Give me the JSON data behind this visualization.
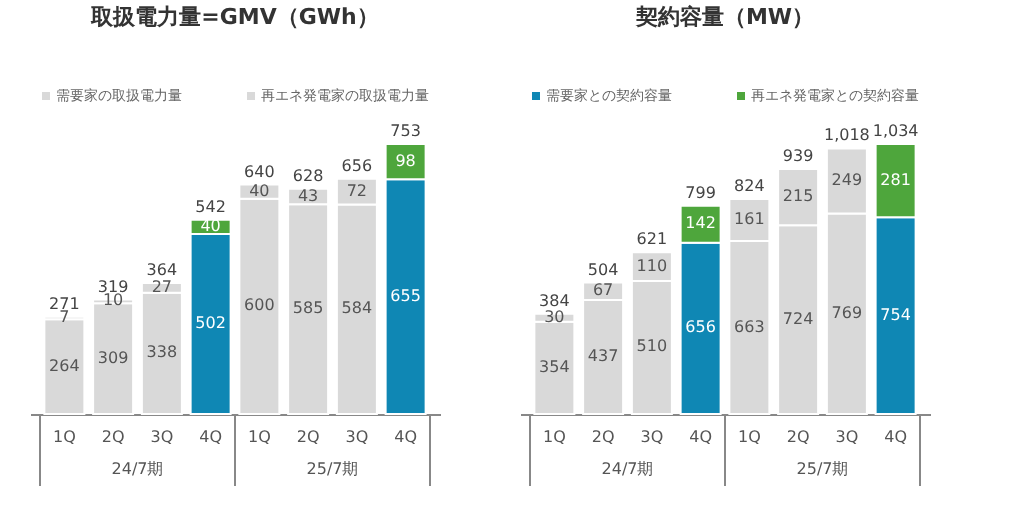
{
  "chart_data": [
    {
      "type": "bar",
      "title": "取扱電力量=GMV（GWh）",
      "stacked": true,
      "data_labels": true,
      "legend": "top",
      "categories": [
        "1Q",
        "2Q",
        "3Q",
        "4Q",
        "1Q",
        "2Q",
        "3Q",
        "4Q"
      ],
      "annotations": [
        "24/7期",
        "25/7期"
      ],
      "series": [
        {
          "name": "需要家の取扱電力量",
          "color": "#d9d9d9",
          "colors": [
            "#d9d9d9",
            "#d9d9d9",
            "#d9d9d9",
            "#0f87b4",
            "#d9d9d9",
            "#d9d9d9",
            "#d9d9d9",
            "#0f87b4"
          ],
          "values": [
            264,
            309,
            338,
            502,
            600,
            585,
            584,
            655
          ]
        },
        {
          "name": "再エネ発電家の取扱電力量",
          "color": "#d9d9d9",
          "colors": [
            "#d9d9d9",
            "#d9d9d9",
            "#d9d9d9",
            "#4ea63c",
            "#d9d9d9",
            "#d9d9d9",
            "#d9d9d9",
            "#4ea63c"
          ],
          "values": [
            7,
            10,
            27,
            40,
            40,
            43,
            72,
            98
          ]
        }
      ],
      "totals": [
        "271",
        "319",
        "364",
        "542",
        "640",
        "628",
        "656",
        "753"
      ]
    },
    {
      "type": "bar",
      "title": "契約容量（MW）",
      "stacked": true,
      "data_labels": true,
      "legend": "top",
      "categories": [
        "1Q",
        "2Q",
        "3Q",
        "4Q",
        "1Q",
        "2Q",
        "3Q",
        "4Q"
      ],
      "annotations": [
        "24/7期",
        "25/7期"
      ],
      "series": [
        {
          "name": "需要家との契約容量",
          "color": "#0f87b4",
          "colors": [
            "#d9d9d9",
            "#d9d9d9",
            "#d9d9d9",
            "#0f87b4",
            "#d9d9d9",
            "#d9d9d9",
            "#d9d9d9",
            "#0f87b4"
          ],
          "values": [
            354,
            437,
            510,
            656,
            663,
            724,
            769,
            754
          ]
        },
        {
          "name": "再エネ発電家との契約容量",
          "color": "#4ea63c",
          "colors": [
            "#d9d9d9",
            "#d9d9d9",
            "#d9d9d9",
            "#4ea63c",
            "#d9d9d9",
            "#d9d9d9",
            "#d9d9d9",
            "#4ea63c"
          ],
          "values": [
            30,
            67,
            110,
            142,
            161,
            215,
            249,
            281
          ]
        }
      ],
      "totals": [
        "384",
        "504",
        "621",
        "799",
        "824",
        "939",
        "1,018",
        "1,034"
      ]
    }
  ]
}
